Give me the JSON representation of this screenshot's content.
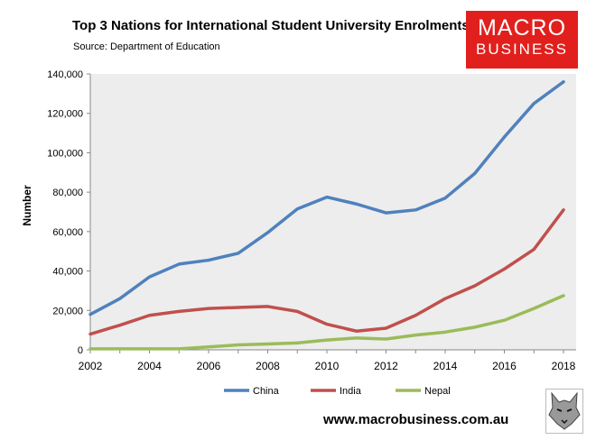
{
  "header": {
    "title": "Top 3 Nations for International Student University Enrolments",
    "source": "Source: Department of Education"
  },
  "logo": {
    "line1": "MACRO",
    "line2": "BUSINESS",
    "color": "#e1201d"
  },
  "footer": {
    "url": "www.macrobusiness.com.au"
  },
  "icons": {
    "wolf": "wolf-head-icon"
  },
  "chart_data": {
    "type": "line",
    "title": "Top 3 Nations for International Student University Enrolments",
    "xlabel": "",
    "ylabel": "Number",
    "x": [
      2002,
      2003,
      2004,
      2005,
      2006,
      2007,
      2008,
      2009,
      2010,
      2011,
      2012,
      2013,
      2014,
      2015,
      2016,
      2017,
      2018
    ],
    "xticks": [
      "2002",
      "2004",
      "2006",
      "2008",
      "2010",
      "2012",
      "2014",
      "2016",
      "2018"
    ],
    "yticks": [
      "0",
      "20,000",
      "40,000",
      "60,000",
      "80,000",
      "100,000",
      "120,000",
      "140,000"
    ],
    "ylim": [
      0,
      140000
    ],
    "xlim": [
      2002,
      2018
    ],
    "legend_position": "bottom",
    "grid": false,
    "series": [
      {
        "name": "China",
        "color": "#4f81bd",
        "values": [
          18000,
          26000,
          37000,
          43500,
          45500,
          49000,
          59500,
          71500,
          77500,
          74000,
          69500,
          71000,
          77000,
          89500,
          108000,
          125000,
          136000
        ]
      },
      {
        "name": "India",
        "color": "#c0504d",
        "values": [
          8000,
          12500,
          17500,
          19500,
          21000,
          21500,
          22000,
          19500,
          13000,
          9500,
          11000,
          17500,
          26000,
          32500,
          41000,
          51000,
          71000
        ]
      },
      {
        "name": "Nepal",
        "color": "#9bbb59",
        "values": [
          500,
          500,
          500,
          500,
          1500,
          2500,
          3000,
          3500,
          5000,
          6000,
          5500,
          7500,
          9000,
          11500,
          15000,
          21000,
          27500
        ]
      }
    ]
  }
}
